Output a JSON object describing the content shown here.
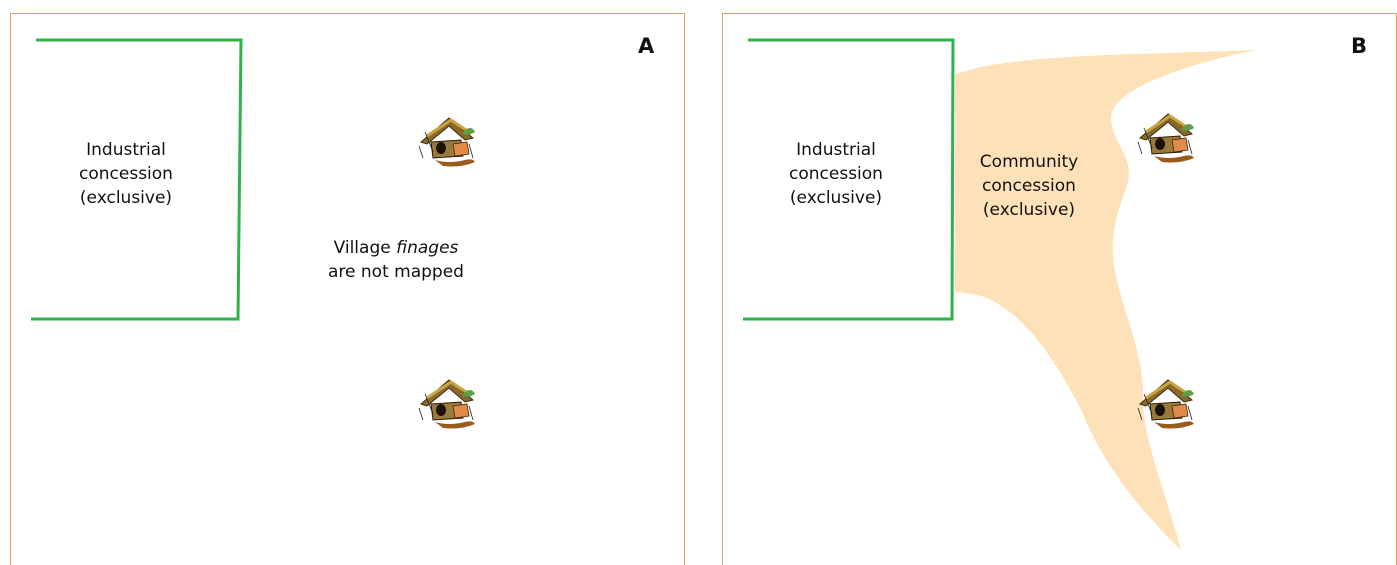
{
  "panels": [
    {
      "letter": "A",
      "industrial": {
        "line1": "Industrial",
        "line2": "concession",
        "line3": "(exclusive)"
      },
      "village_note": {
        "prefix": "Village ",
        "italic": "finages",
        "line2": "are not mapped"
      }
    },
    {
      "letter": "B",
      "industrial": {
        "line1": "Industrial",
        "line2": "concession",
        "line3": "(exclusive)"
      },
      "community": {
        "line1": "Community",
        "line2": "concession",
        "line3": "(exclusive)"
      }
    }
  ],
  "colors": {
    "panel_border": "#e8a15a",
    "industrial_boundary": "#2eb34a",
    "community_fill": "#fde1b8"
  },
  "icons": {
    "village": "village-hut-icon"
  }
}
